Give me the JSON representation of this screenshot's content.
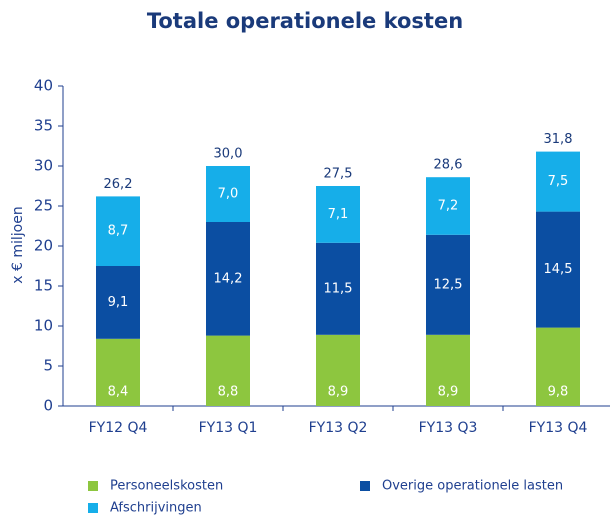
{
  "chart_data": {
    "type": "stacked_bar",
    "title": "Totale operationele kosten",
    "y_label": "x € miljoen",
    "categories": [
      "FY12 Q4",
      "FY13 Q1",
      "FY13 Q2",
      "FY13 Q3",
      "FY13 Q4"
    ],
    "series": [
      {
        "name": "Personeelskosten",
        "color": "#8dc63f",
        "values": [
          8.4,
          8.8,
          8.9,
          8.9,
          9.8
        ],
        "value_labels": [
          "8,4",
          "8,8",
          "8,9",
          "8,9",
          "9,8"
        ]
      },
      {
        "name": "Overige operationele lasten",
        "color": "#0b4ea2",
        "values": [
          9.1,
          14.2,
          11.5,
          12.5,
          14.5
        ],
        "value_labels": [
          "9,1",
          "14,2",
          "11,5",
          "12,5",
          "14,5"
        ]
      },
      {
        "name": "Afschrijvingen",
        "color": "#16aee9",
        "values": [
          8.7,
          7.0,
          7.1,
          7.2,
          7.5
        ],
        "value_labels": [
          "8,7",
          "7,0",
          "7,1",
          "7,2",
          "7,5"
        ]
      }
    ],
    "totals": {
      "values": [
        26.2,
        30.0,
        27.5,
        28.6,
        31.8
      ],
      "value_labels": [
        "26,2",
        "30,0",
        "27,5",
        "28,6",
        "31,8"
      ]
    },
    "ylim": [
      0,
      40
    ],
    "yticks": [
      0,
      5,
      10,
      15,
      20,
      25,
      30,
      35,
      40
    ],
    "grid": false
  }
}
